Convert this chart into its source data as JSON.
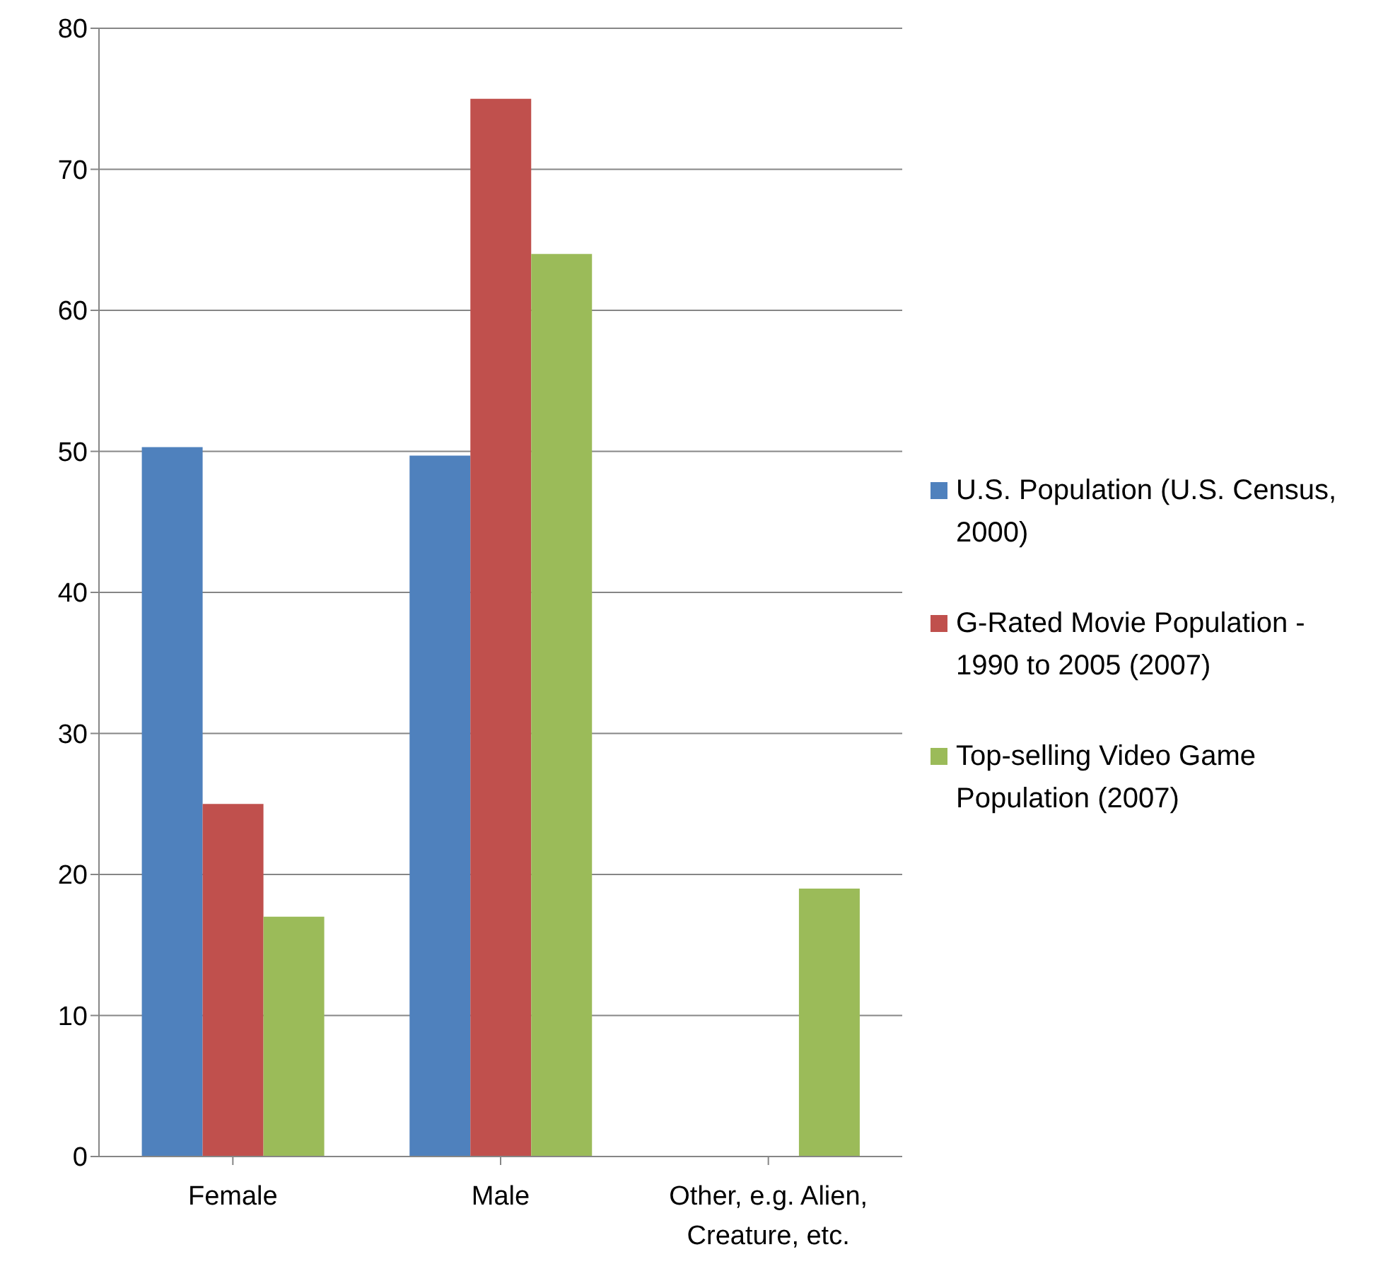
{
  "chart_data": {
    "type": "bar",
    "categories": [
      "Female",
      "Male",
      "Other, e.g. Alien, Creature, etc."
    ],
    "series": [
      {
        "name": "U.S. Population (U.S. Census, 2000)",
        "color": "#4f81bd",
        "values": [
          50.3,
          49.7,
          0
        ]
      },
      {
        "name": "G-Rated Movie Population - 1990 to 2005 (2007)",
        "color": "#c0504d",
        "values": [
          25,
          75,
          0
        ]
      },
      {
        "name": "Top-selling Video Game Population (2007)",
        "color": "#9bbb59",
        "values": [
          17,
          64,
          19
        ]
      }
    ],
    "ylim": [
      0,
      80
    ],
    "yticks": [
      0,
      10,
      20,
      30,
      40,
      50,
      60,
      70,
      80
    ],
    "grid": "y",
    "legend": "right"
  }
}
